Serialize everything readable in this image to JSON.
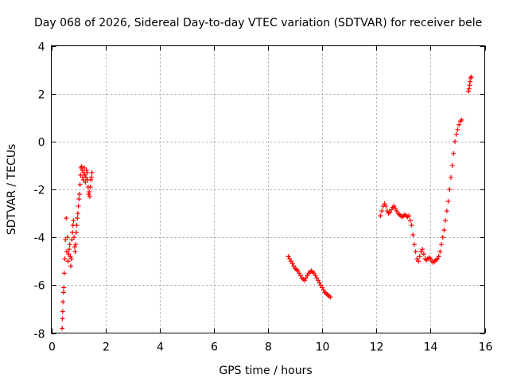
{
  "chart_data": {
    "type": "scatter",
    "title": "Day 068 of 2026, Sidereal Day-to-day VTEC variation (SDTVAR) for receiver bele",
    "xlabel": "GPS time / hours",
    "ylabel": "SDTVAR / TECUs",
    "xlim": [
      0,
      16
    ],
    "ylim": [
      -8,
      4
    ],
    "xticks": [
      "0",
      "2",
      "4",
      "6",
      "8",
      "10",
      "12",
      "14",
      "16"
    ],
    "yticks": [
      "-8",
      "-6",
      "-4",
      "-2",
      "0",
      "2",
      "4"
    ],
    "grid": true,
    "marker": "plus",
    "color": "#ff0000",
    "series": [
      {
        "x": [
          0.4,
          0.41,
          0.42,
          0.43,
          0.45,
          0.46,
          0.48,
          0.5,
          0.52,
          0.55,
          0.57,
          0.6,
          0.62,
          0.64,
          0.66,
          0.68,
          0.7,
          0.72,
          0.74,
          0.76,
          0.78,
          0.8,
          0.82,
          0.84,
          0.86,
          0.88,
          0.9,
          0.92,
          0.94,
          0.96,
          0.98,
          1.0,
          1.02,
          1.04,
          1.06,
          1.08,
          1.1,
          1.12,
          1.14,
          1.16,
          1.18,
          1.2,
          1.22,
          1.24,
          1.26,
          1.28,
          1.3,
          1.32,
          1.34,
          1.36,
          1.38,
          1.4,
          1.42,
          1.44,
          1.46,
          1.48,
          1.5
        ],
        "y": [
          -7.8,
          -7.4,
          -7.1,
          -6.7,
          -6.3,
          -6.1,
          -5.5,
          -4.9,
          -4.1,
          -3.2,
          -4.6,
          -4.0,
          -5.0,
          -4.7,
          -4.5,
          -4.3,
          -4.8,
          -5.2,
          -4.9,
          -4.1,
          -3.8,
          -3.5,
          -3.3,
          -4.0,
          -4.4,
          -4.6,
          -4.3,
          -3.8,
          -3.5,
          -3.2,
          -3.0,
          -2.7,
          -2.4,
          -2.2,
          -1.8,
          -1.4,
          -1.1,
          -1.05,
          -1.2,
          -1.5,
          -1.6,
          -1.3,
          -1.1,
          -1.4,
          -1.7,
          -1.5,
          -1.2,
          -1.3,
          -1.6,
          -1.9,
          -2.2,
          -2.1,
          -2.3,
          -1.9,
          -1.6,
          -1.5,
          -1.3
        ]
      },
      {
        "x": [
          8.75,
          8.8,
          8.85,
          8.9,
          8.95,
          9.0,
          9.05,
          9.1,
          9.15,
          9.2,
          9.25,
          9.3,
          9.35,
          9.4,
          9.45,
          9.5,
          9.55,
          9.6,
          9.65,
          9.7,
          9.75,
          9.8,
          9.85,
          9.9,
          9.95,
          10.0,
          10.05,
          10.1,
          10.15,
          10.2,
          10.25,
          10.3
        ],
        "y": [
          -4.8,
          -4.9,
          -5.0,
          -5.1,
          -5.2,
          -5.3,
          -5.35,
          -5.4,
          -5.5,
          -5.6,
          -5.7,
          -5.75,
          -5.8,
          -5.7,
          -5.6,
          -5.5,
          -5.45,
          -5.4,
          -5.45,
          -5.5,
          -5.6,
          -5.7,
          -5.8,
          -5.9,
          -6.0,
          -6.1,
          -6.2,
          -6.3,
          -6.35,
          -6.4,
          -6.45,
          -6.5
        ]
      },
      {
        "x": [
          12.15,
          12.2,
          12.25,
          12.3,
          12.35,
          12.4,
          12.45,
          12.5,
          12.55,
          12.6,
          12.65,
          12.7,
          12.75,
          12.8,
          12.85,
          12.9,
          12.95,
          13.0,
          13.05,
          13.1,
          13.15,
          13.2,
          13.25,
          13.3,
          13.35,
          13.4,
          13.45,
          13.5,
          13.55,
          13.6,
          13.65,
          13.7,
          13.75,
          13.8,
          13.85,
          13.9,
          13.95,
          14.0,
          14.05,
          14.1,
          14.15,
          14.2,
          14.25,
          14.3,
          14.35,
          14.4,
          14.45,
          14.5,
          14.55,
          14.6,
          14.65,
          14.7,
          14.75,
          14.8,
          14.85,
          14.9,
          14.95,
          15.0,
          15.05,
          15.1,
          15.15
        ],
        "y": [
          -3.1,
          -2.9,
          -2.7,
          -2.6,
          -2.7,
          -2.9,
          -3.0,
          -2.95,
          -2.85,
          -2.75,
          -2.7,
          -2.8,
          -2.9,
          -3.0,
          -3.05,
          -3.1,
          -3.15,
          -3.1,
          -3.05,
          -3.1,
          -3.15,
          -3.1,
          -3.3,
          -3.5,
          -3.9,
          -4.3,
          -4.6,
          -4.9,
          -5.0,
          -4.8,
          -4.6,
          -4.5,
          -4.7,
          -4.9,
          -4.95,
          -4.9,
          -4.85,
          -4.9,
          -5.0,
          -5.05,
          -5.0,
          -4.95,
          -4.9,
          -4.8,
          -4.6,
          -4.3,
          -4.0,
          -3.7,
          -3.3,
          -2.9,
          -2.5,
          -2.0,
          -1.5,
          -1.0,
          -0.5,
          0.0,
          0.3,
          0.5,
          0.7,
          0.85,
          0.9
        ]
      },
      {
        "x": [
          15.4,
          15.42,
          15.44,
          15.46,
          15.48,
          15.5
        ],
        "y": [
          2.1,
          2.2,
          2.35,
          2.5,
          2.65,
          2.7
        ]
      }
    ]
  }
}
